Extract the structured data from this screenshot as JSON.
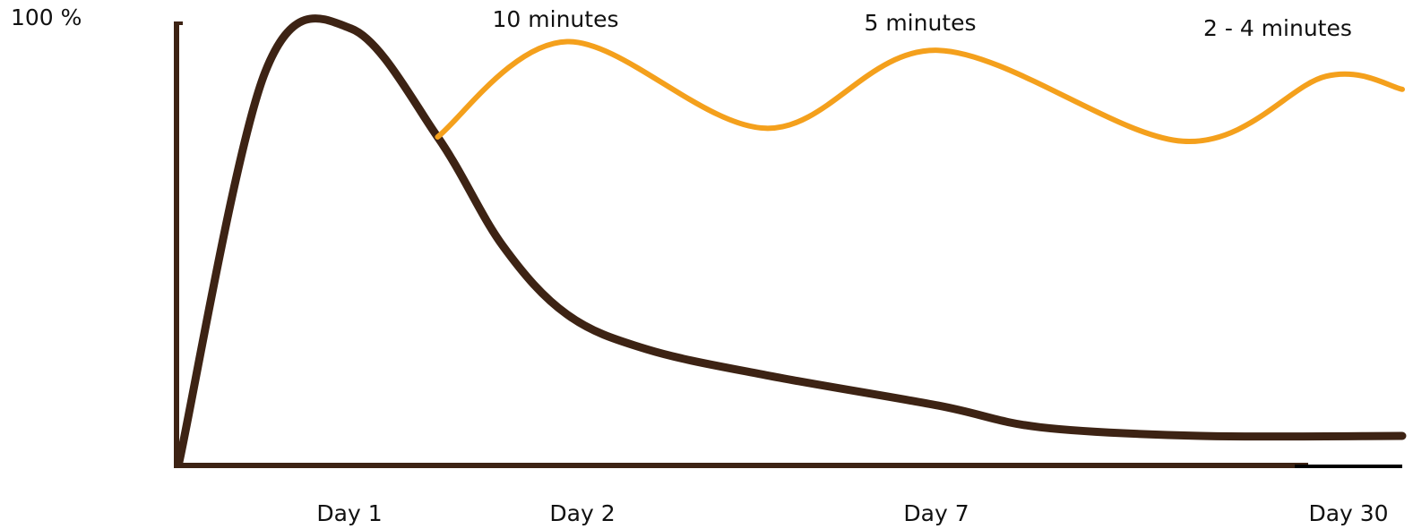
{
  "chart_data": {
    "type": "line",
    "y_axis_label": "100 %",
    "x_ticks": [
      "Day 1",
      "Day 2",
      "Day 7",
      "Day 30"
    ],
    "review_labels": [
      "10 minutes",
      "5 minutes",
      "2 - 4 minutes"
    ],
    "series": [
      {
        "color": "#3d2314",
        "points": [
          [
            0.0,
            0
          ],
          [
            0.5,
            90
          ],
          [
            1.0,
            100
          ],
          [
            1.4,
            75
          ],
          [
            1.7,
            50
          ],
          [
            2.0,
            34
          ],
          [
            3.0,
            26
          ],
          [
            4.5,
            20
          ],
          [
            7.0,
            13
          ],
          [
            12.0,
            8
          ],
          [
            20.0,
            6
          ],
          [
            30.0,
            6
          ]
        ]
      },
      {
        "color": "#f4a01c",
        "points": [
          [
            1.4,
            75
          ],
          [
            2.0,
            97
          ],
          [
            4.5,
            77
          ],
          [
            7.0,
            95
          ],
          [
            19.0,
            74
          ],
          [
            27.0,
            89
          ],
          [
            30.0,
            86
          ]
        ]
      }
    ]
  }
}
